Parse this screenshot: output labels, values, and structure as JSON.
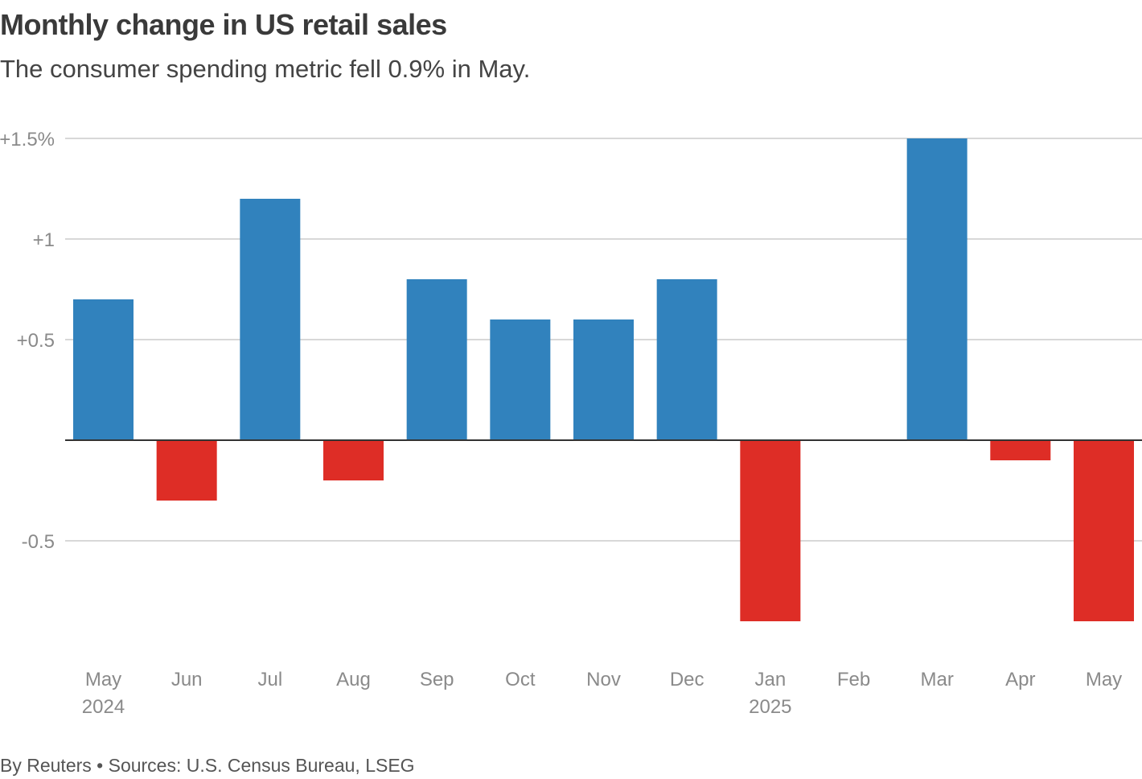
{
  "chart_data": {
    "type": "bar",
    "title": "Monthly change in US retail sales",
    "subtitle": "The consumer spending metric fell 0.9% in May.",
    "categories": [
      "May 2024",
      "Jun",
      "Jul",
      "Aug",
      "Sep",
      "Oct",
      "Nov",
      "Dec",
      "Jan 2025",
      "Feb",
      "Mar",
      "Apr",
      "May"
    ],
    "category_labels": [
      [
        "May",
        "2024"
      ],
      [
        "Jun"
      ],
      [
        "Jul"
      ],
      [
        "Aug"
      ],
      [
        "Sep"
      ],
      [
        "Oct"
      ],
      [
        "Nov"
      ],
      [
        "Dec"
      ],
      [
        "Jan",
        "2025"
      ],
      [
        "Feb"
      ],
      [
        "Mar"
      ],
      [
        "Apr"
      ],
      [
        "May"
      ]
    ],
    "values": [
      0.7,
      -0.3,
      1.2,
      -0.2,
      0.8,
      0.6,
      0.6,
      0.8,
      -0.9,
      0.0,
      1.5,
      -0.1,
      -0.9
    ],
    "ylim": [
      -1.0,
      1.5
    ],
    "yticks": [
      1.5,
      1,
      0.5,
      -0.5
    ],
    "ytick_labels": [
      "+1.5%",
      "+1",
      "+0.5",
      "-0.5"
    ],
    "ylabel": "",
    "xlabel": "",
    "grid": true,
    "colors": {
      "positive": "#3182bd",
      "negative": "#de2d26",
      "grid": "#cccccc",
      "zero_line": "#333333"
    }
  },
  "footer": "By Reuters • Sources: U.S. Census Bureau, LSEG"
}
